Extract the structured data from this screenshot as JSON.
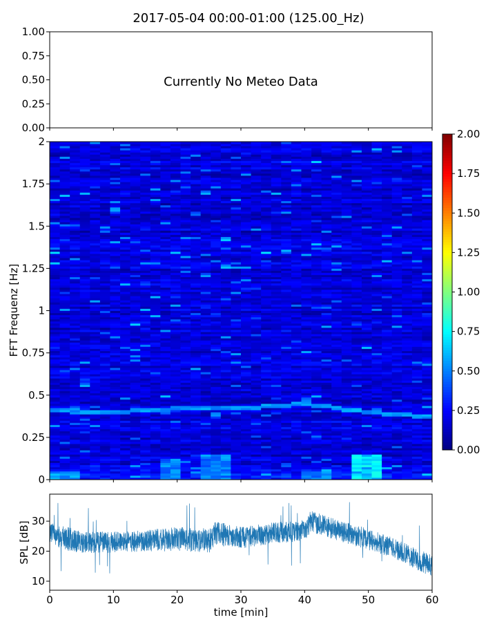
{
  "title": "2017-05-04 00:00-01:00 (125.00_Hz)",
  "chart_data": [
    {
      "panel": "meteo",
      "type": "line",
      "message": "Currently No Meteo Data",
      "ylim": [
        0,
        1
      ],
      "yticks": [
        "0.00",
        "0.25",
        "0.50",
        "0.75",
        "1.00"
      ],
      "grid": false
    },
    {
      "panel": "spectrogram",
      "type": "heatmap",
      "ylabel": "FFT Frequenz [Hz]",
      "xlim": [
        0,
        60
      ],
      "ylim": [
        0,
        2
      ],
      "yticks": [
        "0",
        "0.25",
        "0.5",
        "0.75",
        "1",
        "1.25",
        "1.5",
        "1.75",
        "2"
      ],
      "colormap": "jet",
      "colorbar": {
        "range": [
          0,
          2
        ],
        "ticks": [
          "0.00",
          "0.25",
          "0.50",
          "0.75",
          "1.00",
          "1.25",
          "1.50",
          "1.75",
          "2.00"
        ]
      },
      "background_level": 0.18,
      "features": [
        {
          "label": "tonal line",
          "x_min": [
            0,
            10,
            20,
            30,
            40,
            50,
            60
          ],
          "freq_hz": [
            0.41,
            0.4,
            0.42,
            0.42,
            0.45,
            0.4,
            0.37
          ],
          "level": 0.55
        },
        {
          "label": "low-frequency burst",
          "x_min": [
            48,
            52
          ],
          "freq_range_hz": [
            0,
            0.15
          ],
          "level": 0.8
        },
        {
          "label": "low-frequency burst",
          "x_min": [
            24,
            28
          ],
          "freq_range_hz": [
            0,
            0.15
          ],
          "level": 0.6
        },
        {
          "label": "low-frequency burst",
          "x_min": [
            18,
            21
          ],
          "freq_range_hz": [
            0,
            0.12
          ],
          "level": 0.6
        },
        {
          "label": "low-frequency burst",
          "x_min": [
            40,
            44
          ],
          "freq_range_hz": [
            0,
            0.05
          ],
          "level": 0.6
        },
        {
          "label": "low-frequency burst",
          "x_min": [
            0,
            4
          ],
          "freq_range_hz": [
            0,
            0.05
          ],
          "level": 0.7
        },
        {
          "label": "peak",
          "x_min": [
            50.3,
            51.2
          ],
          "freq_range_hz": [
            0,
            0.03
          ],
          "level": 1.7
        }
      ]
    },
    {
      "panel": "spl",
      "type": "line",
      "xlabel": "time [min]",
      "ylabel": "SPL [dB]",
      "xlim": [
        0,
        60
      ],
      "ylim": [
        7,
        39
      ],
      "xticks": [
        "0",
        "10",
        "20",
        "30",
        "40",
        "50",
        "60"
      ],
      "yticks": [
        "10",
        "20",
        "30"
      ],
      "color": "#1f77b4",
      "series": [
        {
          "x": [
            0,
            3,
            5,
            10,
            15,
            20,
            25,
            26,
            30,
            35,
            40,
            41,
            45,
            50,
            55,
            60
          ],
          "y": [
            26,
            24,
            23,
            23,
            23.5,
            24,
            23.5,
            26,
            24.5,
            26,
            27,
            30,
            27,
            24,
            20,
            15
          ],
          "spread": [
            3.5,
            4,
            3.5,
            3.5,
            3.5,
            4,
            4,
            4,
            3.5,
            3.5,
            3.5,
            3.5,
            3.5,
            3.5,
            3.5,
            3.5
          ]
        }
      ]
    }
  ]
}
